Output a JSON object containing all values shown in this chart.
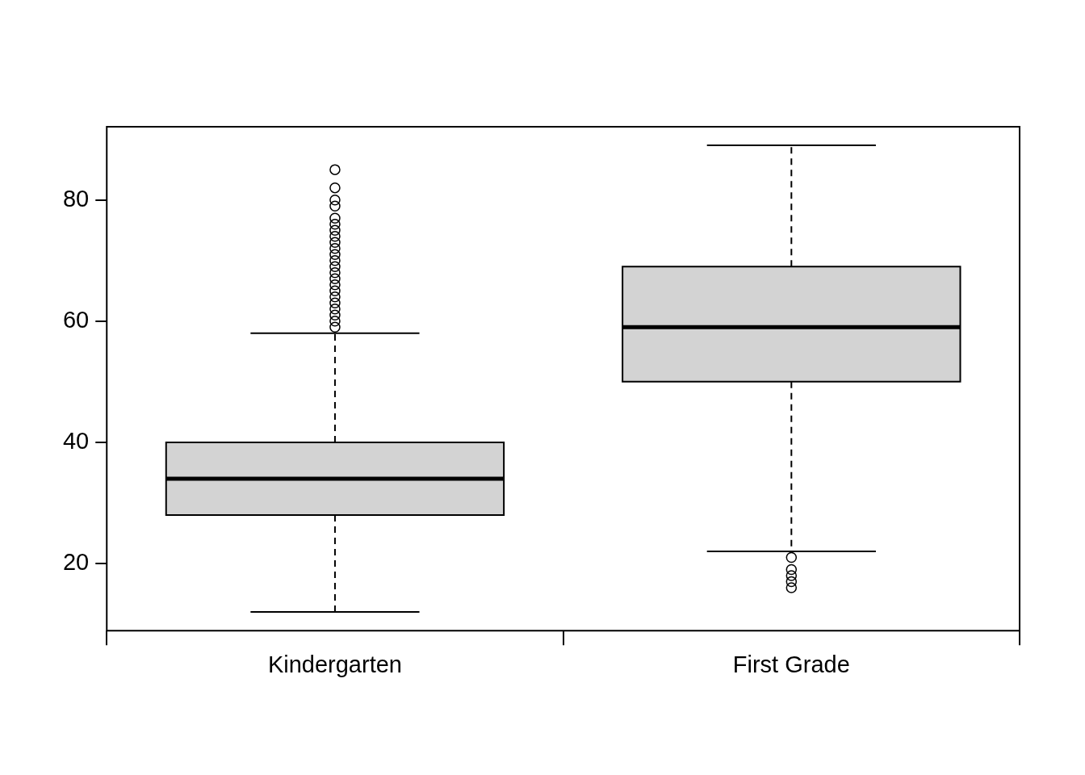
{
  "chart_data": {
    "type": "box",
    "categories": [
      "Kindergarten",
      "First Grade"
    ],
    "color": "#d3d3d3",
    "boxes": [
      {
        "low": 12,
        "q1": 28,
        "median": 34,
        "q3": 40,
        "high": 58,
        "outliers": [
          59,
          60,
          61,
          62,
          63,
          64,
          65,
          66,
          67,
          68,
          69,
          70,
          71,
          72,
          73,
          74,
          75,
          76,
          77,
          79,
          80,
          82,
          85
        ]
      },
      {
        "low": 22,
        "q1": 50,
        "median": 59,
        "q3": 69,
        "high": 89,
        "outliers": [
          21,
          19,
          18,
          17,
          16
        ]
      }
    ],
    "ylim": [
      8.92,
      92.08
    ],
    "yticks": [
      20,
      40,
      60,
      80
    ]
  }
}
